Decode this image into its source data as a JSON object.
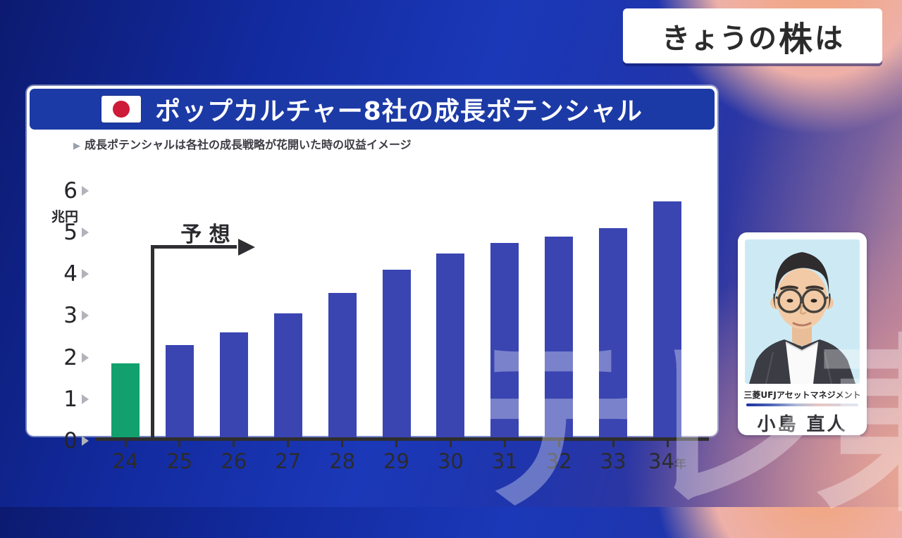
{
  "header": {
    "prefix": "きょうの",
    "emph": "株",
    "suffix": "は"
  },
  "chart": {
    "title": "ポップカルチャー8社の成長ポテンシャル",
    "subtitle_marker": "▶",
    "subtitle": "成長ポテンシャルは各社の成長戦略が花開いた時の収益イメージ",
    "unit": "兆円",
    "forecast_label": "予 想"
  },
  "chart_data": {
    "type": "bar",
    "title": "ポップカルチャー8社の成長ポテンシャル",
    "subtitle": "成長ポテンシャルは各社の成長戦略が花開いた時の収益イメージ",
    "categories": [
      "24",
      "25",
      "26",
      "27",
      "28",
      "29",
      "30",
      "31",
      "32",
      "33",
      "34"
    ],
    "x_suffix_last": "年",
    "values": [
      1.85,
      2.3,
      2.6,
      3.05,
      3.55,
      4.1,
      4.5,
      4.75,
      4.9,
      5.1,
      5.75
    ],
    "actual_count": 1,
    "bar_color_actual": "#12a06e",
    "bar_color_forecast": "#3a45b2",
    "ylabel": "兆円",
    "ylim": [
      0,
      6
    ],
    "yticks": [
      0,
      1,
      2,
      3,
      4,
      5,
      6
    ],
    "grid": false,
    "annotation": "予 想"
  },
  "analyst": {
    "company": "三菱UFJアセットマネジメント",
    "name": "小島 直人"
  },
  "watermark": "テレ東",
  "colors": {
    "title_bar": "#1c3aa6",
    "bar_actual": "#12a06e",
    "bar_forecast": "#3a45b2",
    "axis": "#2e2e2e",
    "flag_red": "#ce1b38"
  }
}
